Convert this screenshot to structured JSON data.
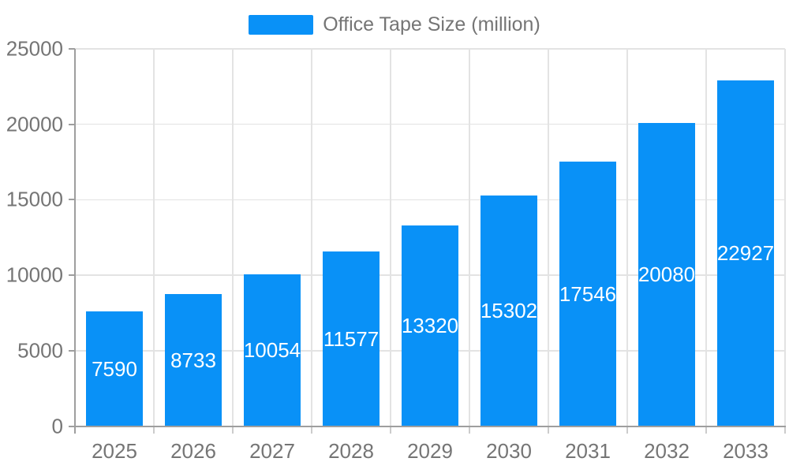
{
  "legend": {
    "label": "Office Tape Size (million)",
    "swatch_color": "#0991f7"
  },
  "colors": {
    "bar": "#0991f7",
    "axis_line": "#9e9e9e",
    "grid_line": "#e3e3e3",
    "x_tick_mark": "#cccccc",
    "tick_label": "#757575",
    "value_label": "#ffffff",
    "background": "#ffffff"
  },
  "chart_data": {
    "type": "bar",
    "title": "Office Tape Size (million)",
    "categories": [
      "2025",
      "2026",
      "2027",
      "2028",
      "2029",
      "2030",
      "2031",
      "2032",
      "2033"
    ],
    "values": [
      7590,
      8733,
      10054,
      11577,
      13320,
      15302,
      17546,
      20080,
      22927
    ],
    "xlabel": "",
    "ylabel": "",
    "ylim": [
      0,
      25000
    ],
    "yticks": [
      0,
      5000,
      10000,
      15000,
      20000,
      25000
    ],
    "grid": true,
    "legend_position": "top-center",
    "value_label_position": "inside-center"
  }
}
